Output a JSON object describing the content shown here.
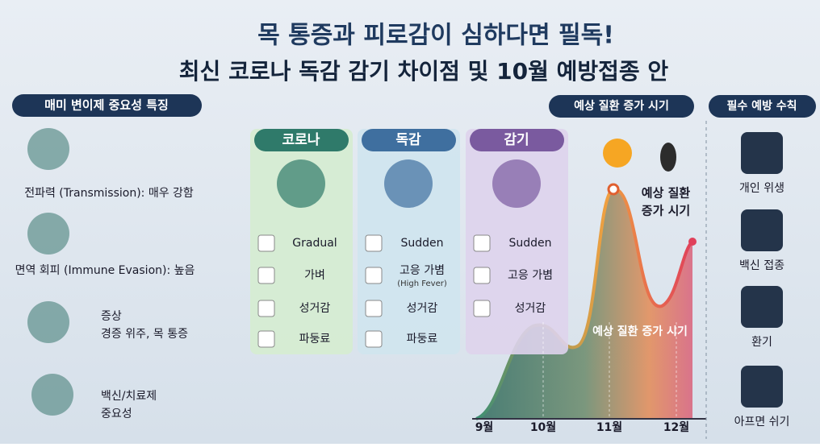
{
  "header": {
    "title_line1": "목 통증과 피로감이 심하다면 필독!",
    "title_line2": "최신 코로나 독감 감기 차이점 및 10월 예방접종 안"
  },
  "left": {
    "title": "매미 변이제 중요성 특징",
    "items": [
      [
        "전파력 (Transmission): 매우 강함"
      ],
      [
        "면역 회피 (Immune Evasion): 높음"
      ],
      [
        "증상",
        "경증 위주, 목 통증"
      ],
      [
        "백신/치료제",
        "중요성"
      ]
    ]
  },
  "columns": [
    {
      "name": "코로나",
      "rows": [
        "Gradual",
        "가벼",
        "성거감",
        "파둥료"
      ]
    },
    {
      "name": "독감",
      "rows": [
        "Sudden",
        "고응 가볌",
        "성거감",
        "파둥료"
      ],
      "note": "(High Fever)"
    },
    {
      "name": "감기",
      "rows": [
        "Sudden",
        "고응 가볌",
        "성거감"
      ]
    }
  ],
  "chart": {
    "title": "예상 질환 증가 시기",
    "peak_label": [
      "예상 질환",
      "증가 시기"
    ],
    "mid_label": "예상 질환 증가 시기",
    "months": [
      "9월",
      "10월",
      "11월",
      "12월"
    ]
  },
  "right": {
    "title": "필수 예방 수칙",
    "items": [
      "개인 위생",
      "백신 접종",
      "환기",
      "아프면 쉬기"
    ]
  }
}
